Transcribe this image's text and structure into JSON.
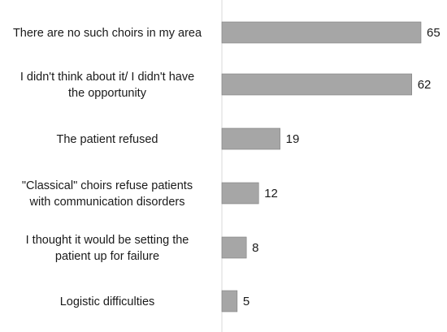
{
  "chart_data": {
    "type": "bar",
    "orientation": "horizontal",
    "categories": [
      [
        "There are no such choirs in my area"
      ],
      [
        "I didn't think about it/ I didn't have",
        "the opportunity"
      ],
      [
        "The patient refused"
      ],
      [
        "\"Classical\" choirs refuse patients",
        "with communication disorders"
      ],
      [
        "I thought it would be setting the",
        "patient up for failure"
      ],
      [
        "Logistic difficulties"
      ]
    ],
    "values": [
      65,
      62,
      19,
      12,
      8,
      5
    ],
    "value_labels": [
      "65",
      "62",
      "19",
      "12",
      "8",
      "5"
    ],
    "xlim": [
      0,
      70
    ],
    "bar_color": "#a6a6a6",
    "bar_stroke": "#7f7f7f",
    "axis_color": "#d9d9d9",
    "grid": false,
    "legend": "none"
  }
}
